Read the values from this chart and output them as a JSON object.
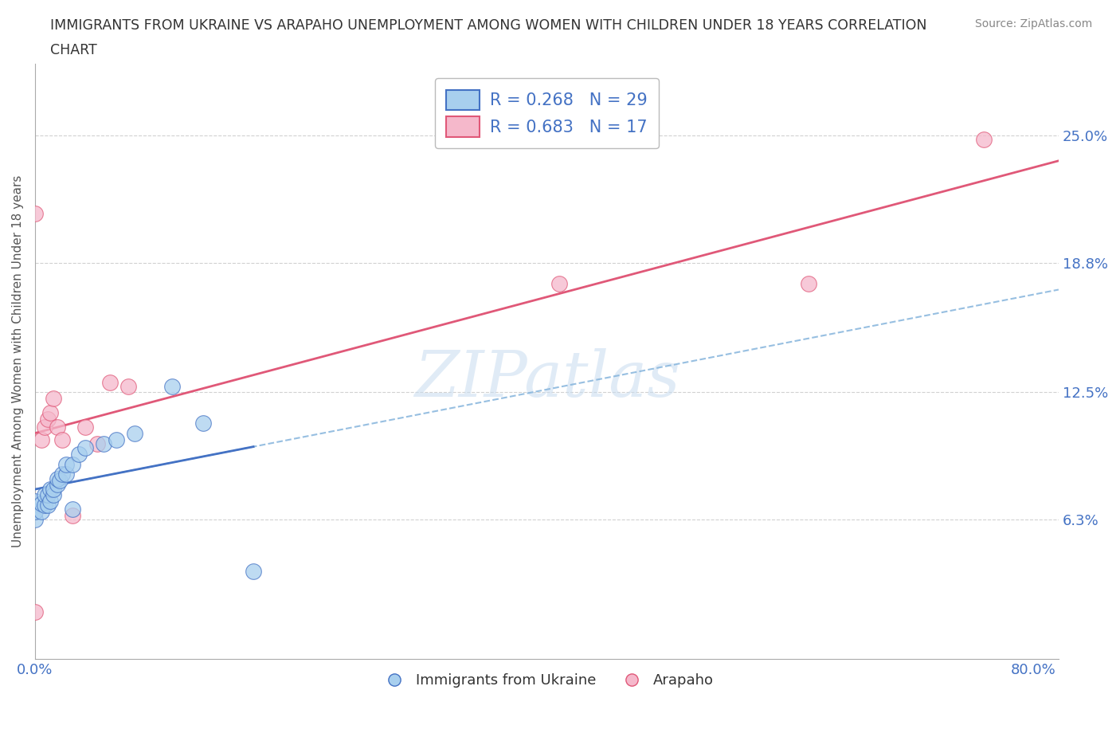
{
  "title_line1": "IMMIGRANTS FROM UKRAINE VS ARAPAHO UNEMPLOYMENT AMONG WOMEN WITH CHILDREN UNDER 18 YEARS CORRELATION",
  "title_line2": "CHART",
  "source": "Source: ZipAtlas.com",
  "ylabel": "Unemployment Among Women with Children Under 18 years",
  "xlim": [
    0.0,
    0.82
  ],
  "ylim": [
    -0.005,
    0.285
  ],
  "yticks": [
    0.063,
    0.125,
    0.188,
    0.25
  ],
  "ytick_labels": [
    "6.3%",
    "12.5%",
    "18.8%",
    "25.0%"
  ],
  "xticks": [
    0.0,
    0.2,
    0.4,
    0.6,
    0.8
  ],
  "xtick_labels": [
    "0.0%",
    "",
    "",
    "",
    "80.0%"
  ],
  "watermark": "ZIPatlas",
  "ukraine_color": "#A8CFEE",
  "arapaho_color": "#F5B8CB",
  "ukraine_line_color": "#4472C4",
  "arapaho_line_color": "#E05878",
  "ukraine_dash_color": "#85B4DC",
  "R_ukraine": 0.268,
  "N_ukraine": 29,
  "R_arapaho": 0.683,
  "N_arapaho": 17,
  "ukraine_x": [
    0.0,
    0.0,
    0.0,
    0.005,
    0.005,
    0.008,
    0.008,
    0.01,
    0.01,
    0.012,
    0.012,
    0.015,
    0.015,
    0.018,
    0.018,
    0.02,
    0.022,
    0.025,
    0.025,
    0.03,
    0.03,
    0.035,
    0.04,
    0.055,
    0.065,
    0.08,
    0.11,
    0.135,
    0.175
  ],
  "ukraine_y": [
    0.063,
    0.067,
    0.072,
    0.067,
    0.071,
    0.07,
    0.075,
    0.07,
    0.075,
    0.072,
    0.078,
    0.075,
    0.078,
    0.08,
    0.083,
    0.082,
    0.085,
    0.085,
    0.09,
    0.09,
    0.068,
    0.095,
    0.098,
    0.1,
    0.102,
    0.105,
    0.128,
    0.11,
    0.038
  ],
  "arapaho_x": [
    0.0,
    0.0,
    0.005,
    0.008,
    0.01,
    0.012,
    0.015,
    0.018,
    0.022,
    0.03,
    0.04,
    0.05,
    0.06,
    0.075,
    0.42,
    0.62,
    0.76
  ],
  "arapaho_y": [
    0.212,
    0.018,
    0.102,
    0.108,
    0.112,
    0.115,
    0.122,
    0.108,
    0.102,
    0.065,
    0.108,
    0.1,
    0.13,
    0.128,
    0.178,
    0.178,
    0.248
  ],
  "background_color": "#FFFFFF",
  "grid_color": "#CCCCCC",
  "axis_text_color": "#4472C4"
}
